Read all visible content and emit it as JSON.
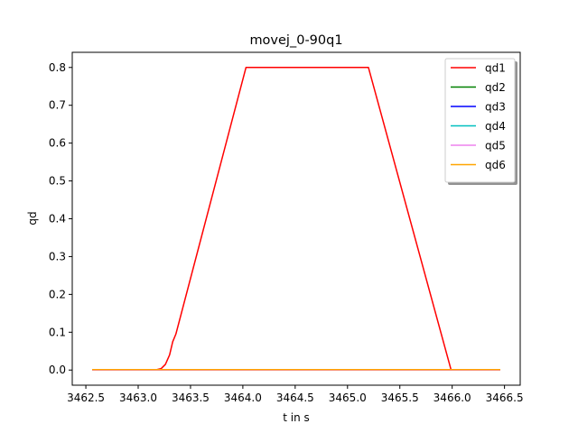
{
  "chart_data": {
    "type": "line",
    "title": "movej_0-90q1",
    "xlabel": "t in s",
    "ylabel": "qd",
    "xlim": [
      3462.37,
      3466.65
    ],
    "ylim": [
      -0.04,
      0.84
    ],
    "xticks": [
      "3462.5",
      "3463.0",
      "3463.5",
      "3464.0",
      "3464.5",
      "3465.0",
      "3465.5",
      "3466.0",
      "3466.5"
    ],
    "yticks": [
      "0.0",
      "0.1",
      "0.2",
      "0.3",
      "0.4",
      "0.5",
      "0.6",
      "0.7",
      "0.8"
    ],
    "grid": false,
    "legend": {
      "placement": "top-right",
      "shadow": true
    },
    "series": [
      {
        "name": "qd1",
        "color": "#ff0000",
        "x": [
          3462.56,
          3463.16,
          3463.22,
          3463.26,
          3463.3,
          3463.33,
          3463.36,
          3464.03,
          3465.2,
          3465.99,
          3466.46
        ],
        "y": [
          0.0,
          0.0,
          0.004,
          0.015,
          0.04,
          0.075,
          0.095,
          0.8,
          0.8,
          0.0,
          0.0
        ]
      },
      {
        "name": "qd2",
        "color": "#008000",
        "x": [
          3462.56,
          3466.46
        ],
        "y": [
          0.0,
          0.0
        ]
      },
      {
        "name": "qd3",
        "color": "#0000ff",
        "x": [
          3462.56,
          3466.46
        ],
        "y": [
          0.0,
          0.0
        ]
      },
      {
        "name": "qd4",
        "color": "#00bfbf",
        "x": [
          3462.56,
          3466.46
        ],
        "y": [
          0.0,
          0.0
        ]
      },
      {
        "name": "qd5",
        "color": "#ee82ee",
        "x": [
          3462.56,
          3466.46
        ],
        "y": [
          0.0,
          0.0
        ]
      },
      {
        "name": "qd6",
        "color": "#ffa500",
        "x": [
          3462.56,
          3466.46
        ],
        "y": [
          0.001,
          0.001
        ]
      }
    ]
  }
}
